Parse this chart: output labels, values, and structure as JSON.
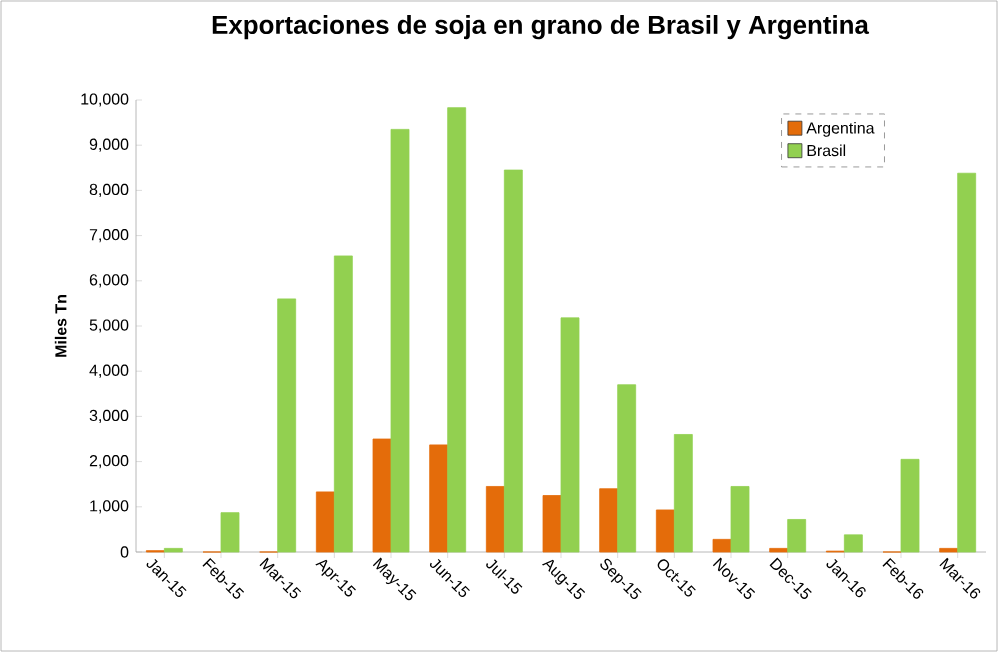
{
  "chart_data": {
    "type": "bar",
    "title": "Exportaciones de soja en grano de Brasil y Argentina",
    "ylabel": "Miles Tn",
    "categories": [
      "Jan-15",
      "Feb-15",
      "Mar-15",
      "Apr-15",
      "May-15",
      "Jun-15",
      "Jul-15",
      "Aug-15",
      "Sep-15",
      "Oct-15",
      "Nov-15",
      "Dec-15",
      "Jan-16",
      "Feb-16",
      "Mar-16"
    ],
    "series": [
      {
        "name": "Argentina",
        "color": "#e46c0a",
        "values": [
          30,
          0,
          0,
          1330,
          2500,
          2370,
          1450,
          1250,
          1400,
          930,
          280,
          80,
          20,
          0,
          80
        ]
      },
      {
        "name": "Brasil",
        "color": "#92d050",
        "values": [
          80,
          870,
          5600,
          6550,
          9350,
          9830,
          8450,
          5180,
          3700,
          2600,
          1450,
          720,
          380,
          2050,
          8380
        ]
      }
    ],
    "ylim": [
      0,
      10000
    ],
    "yticks": [
      {
        "value": 0,
        "label": "0"
      },
      {
        "value": 1000,
        "label": "1,000"
      },
      {
        "value": 2000,
        "label": "2,000"
      },
      {
        "value": 3000,
        "label": "3,000"
      },
      {
        "value": 4000,
        "label": "4,000"
      },
      {
        "value": 5000,
        "label": "5,000"
      },
      {
        "value": 6000,
        "label": "6,000"
      },
      {
        "value": 7000,
        "label": "7,000"
      },
      {
        "value": 8000,
        "label": "8,000"
      },
      {
        "value": 9000,
        "label": "9,000"
      },
      {
        "value": 10000,
        "label": "10,000"
      }
    ],
    "grid": false,
    "legend": "top right"
  }
}
